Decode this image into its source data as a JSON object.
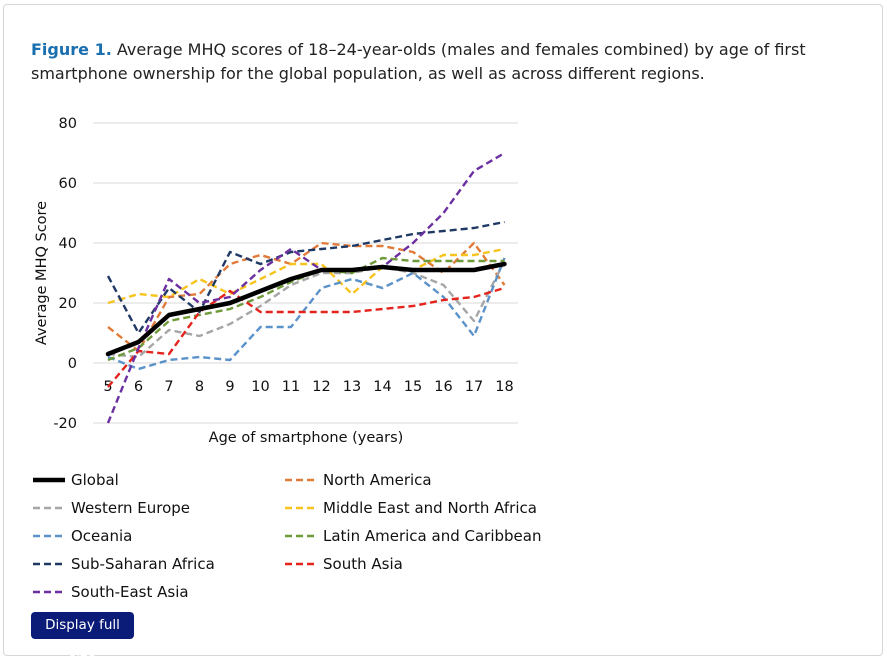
{
  "caption": {
    "label": "Figure 1.",
    "text": " Average MHQ scores of 18–24-year-olds (males and females combined) by age of first smartphone ownership for the global population, as well as across different regions."
  },
  "button": {
    "label": "Display full size"
  },
  "chart_data": {
    "type": "line",
    "title": "",
    "xlabel": "Age of smartphone (years)",
    "ylabel": "Average MHQ Score",
    "ylim": [
      -20,
      80
    ],
    "yticks": [
      80,
      60,
      40,
      20,
      0,
      -20
    ],
    "categories": [
      "5",
      "6",
      "7",
      "8",
      "9",
      "10",
      "11",
      "12",
      "13",
      "14",
      "15",
      "16",
      "17",
      "18"
    ],
    "grid": "horizontal",
    "legend_position": "bottom",
    "series": [
      {
        "name": "Global",
        "color": "#000000",
        "style": "solid",
        "values": [
          3,
          7,
          16,
          18,
          20,
          24,
          28,
          31,
          31,
          32,
          31,
          31,
          31,
          33
        ]
      },
      {
        "name": "North America",
        "color": "#e07b39",
        "style": "dashed",
        "values": [
          12,
          4,
          22,
          23,
          33,
          36,
          33,
          40,
          39,
          39,
          37,
          30,
          40,
          26
        ]
      },
      {
        "name": "Western Europe",
        "color": "#a6a6a6",
        "style": "dashed",
        "values": [
          3,
          2,
          11,
          9,
          13,
          19,
          26,
          30,
          30,
          32,
          30,
          26,
          14,
          34
        ]
      },
      {
        "name": "Middle East and North Africa",
        "color": "#f7c31d",
        "style": "dashed",
        "values": [
          20,
          23,
          22,
          28,
          23,
          28,
          33,
          33,
          23,
          32,
          31,
          36,
          36,
          38
        ]
      },
      {
        "name": "Oceania",
        "color": "#5b92c9",
        "style": "dashed",
        "values": [
          2,
          -2,
          1,
          2,
          1,
          12,
          12,
          25,
          28,
          25,
          30,
          22,
          9,
          35
        ]
      },
      {
        "name": "Latin America and Caribbean",
        "color": "#6f9a3a",
        "style": "dashed",
        "values": [
          1,
          5,
          14,
          16,
          18,
          22,
          27,
          31,
          30,
          35,
          34,
          34,
          34,
          34
        ]
      },
      {
        "name": "Sub-Saharan Africa",
        "color": "#1f3864",
        "style": "dashed",
        "values": [
          29,
          10,
          25,
          17,
          37,
          33,
          37,
          38,
          39,
          41,
          43,
          44,
          45,
          47
        ]
      },
      {
        "name": "South Asia",
        "color": "#e3231c",
        "style": "dashed",
        "values": [
          -8,
          4,
          3,
          17,
          24,
          17,
          17,
          17,
          17,
          18,
          19,
          21,
          22,
          25
        ]
      },
      {
        "name": "South-East Asia",
        "color": "#6b2fa0",
        "style": "dashed",
        "values": [
          -20,
          5,
          28,
          20,
          22,
          31,
          38,
          31,
          31,
          32,
          40,
          50,
          64,
          70
        ]
      }
    ]
  }
}
